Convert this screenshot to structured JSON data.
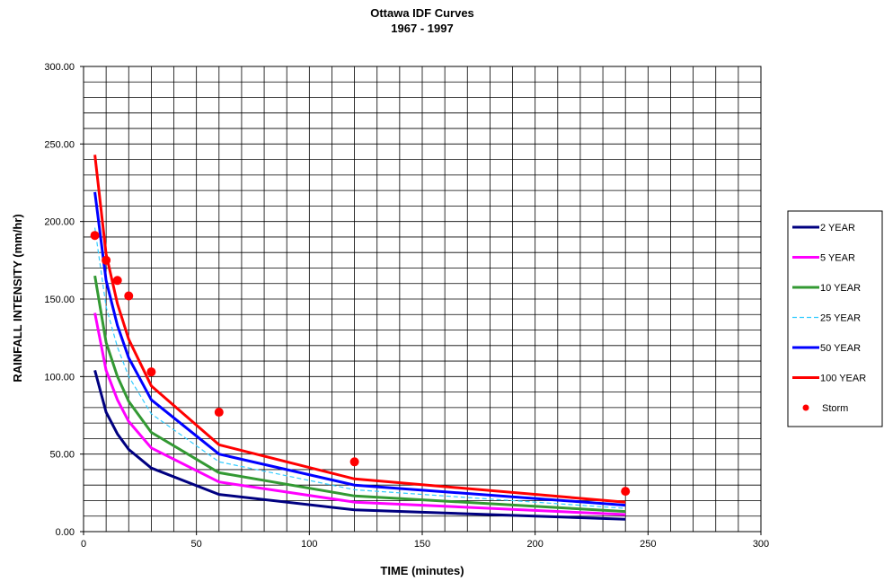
{
  "chart_data": {
    "type": "line",
    "title": "Ottawa IDF Curves",
    "subtitle": "1967 - 1997",
    "xlabel": "TIME (minutes)",
    "ylabel": "RAINFALL INTENSITY (mm/hr)",
    "xlim": [
      0,
      300
    ],
    "ylim": [
      0,
      300
    ],
    "x_ticks": [
      0,
      50,
      100,
      150,
      200,
      250,
      300
    ],
    "x_tick_labels": [
      "0",
      "50",
      "100",
      "150",
      "200",
      "250",
      "300"
    ],
    "y_ticks": [
      0,
      50,
      100,
      150,
      200,
      250,
      300
    ],
    "y_tick_labels": [
      "0.00",
      "50.00",
      "100.00",
      "150.00",
      "200.00",
      "250.00",
      "300.00"
    ],
    "grid": true,
    "legend_position": "right",
    "x": [
      5,
      10,
      15,
      20,
      30,
      60,
      120,
      240
    ],
    "series": [
      {
        "name": "2 YEAR",
        "color": "#000080",
        "style": "solid",
        "values": [
          104,
          77,
          63,
          53,
          41,
          24,
          14,
          8
        ]
      },
      {
        "name": "5 YEAR",
        "color": "#ff00ff",
        "style": "solid",
        "values": [
          141,
          104,
          85,
          71,
          54,
          32,
          19,
          11
        ]
      },
      {
        "name": "10 YEAR",
        "color": "#339933",
        "style": "solid",
        "values": [
          165,
          122,
          100,
          84,
          64,
          38,
          23,
          13
        ]
      },
      {
        "name": "25 YEAR",
        "color": "#33ccff",
        "style": "dashed",
        "values": [
          196,
          145,
          119,
          100,
          76,
          45,
          27,
          15
        ]
      },
      {
        "name": "50 YEAR",
        "color": "#0000ff",
        "style": "solid",
        "values": [
          219,
          162,
          133,
          112,
          85,
          50,
          30,
          17
        ]
      },
      {
        "name": "100 YEAR",
        "color": "#ff0000",
        "style": "solid",
        "values": [
          243,
          179,
          147,
          124,
          94,
          56,
          34,
          19
        ]
      },
      {
        "name": "Storm",
        "color": "#ff0000",
        "style": "markers",
        "values": [
          191,
          175,
          162,
          152,
          103,
          77,
          45,
          26
        ]
      }
    ]
  }
}
